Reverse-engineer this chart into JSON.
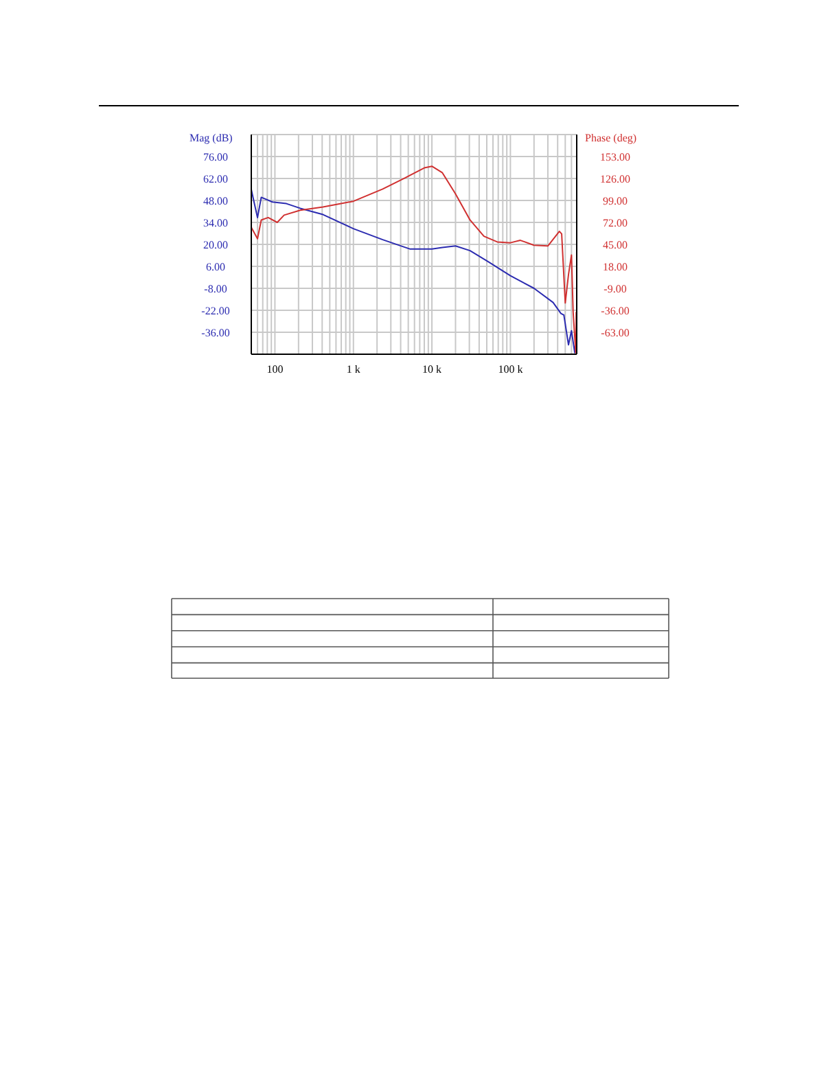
{
  "chart_data": {
    "type": "line",
    "ylabel": "Mag (dB)",
    "y2label": "Phase (deg)",
    "series": [
      {
        "color": "#2b2bb0",
        "x": [
          50,
          60,
          67,
          93,
          140,
          210,
          410,
          1000,
          2360,
          5300,
          10000,
          13600,
          20000,
          30600,
          52000,
          100000,
          200000,
          350000,
          440000,
          480000,
          550000,
          600000,
          660000,
          680000
        ],
        "values": [
          55,
          37,
          50,
          47,
          46,
          43,
          39,
          30,
          23,
          17,
          17,
          18,
          19,
          16,
          9,
          0,
          -8,
          -17,
          -24,
          -25,
          -44,
          -35,
          -49,
          -41
        ]
      },
      {
        "color": "#d03030",
        "axis": "y2",
        "x": [
          50,
          60,
          67,
          82,
          107,
          131,
          210,
          410,
          1000,
          2360,
          4600,
          8000,
          10000,
          13600,
          20000,
          30600,
          46000,
          68000,
          100000,
          134000,
          200000,
          300000,
          420000,
          450000,
          500000,
          550000,
          600000,
          630000,
          680000,
          690000
        ],
        "values": [
          66,
          52,
          75,
          78,
          72,
          81,
          87,
          91,
          98,
          113,
          127,
          139,
          141,
          133,
          107,
          75,
          55,
          48,
          47,
          50,
          44,
          43,
          61,
          58,
          -27,
          8,
          32,
          -38,
          -88,
          -38
        ]
      }
    ],
    "log": "x",
    "grid": true,
    "line_style": "solid",
    "marker": "none",
    "xlim": [
      50,
      700000
    ],
    "xticks": [
      {
        "value": 50,
        "label": null
      },
      {
        "value": 60,
        "label": null
      },
      {
        "value": 70,
        "label": null
      },
      {
        "value": 80,
        "label": null
      },
      {
        "value": 90,
        "label": null
      },
      {
        "value": 100,
        "label": "100"
      },
      {
        "value": 200,
        "label": null
      },
      {
        "value": 300,
        "label": null
      },
      {
        "value": 400,
        "label": null
      },
      {
        "value": 500,
        "label": null
      },
      {
        "value": 600,
        "label": null
      },
      {
        "value": 700,
        "label": null
      },
      {
        "value": 800,
        "label": null
      },
      {
        "value": 900,
        "label": null
      },
      {
        "value": 1000,
        "label": "1 k"
      },
      {
        "value": 2000,
        "label": null
      },
      {
        "value": 3000,
        "label": null
      },
      {
        "value": 4000,
        "label": null
      },
      {
        "value": 5000,
        "label": null
      },
      {
        "value": 6000,
        "label": null
      },
      {
        "value": 7000,
        "label": null
      },
      {
        "value": 8000,
        "label": null
      },
      {
        "value": 9000,
        "label": null
      },
      {
        "value": 10000,
        "label": "10 k"
      },
      {
        "value": 20000,
        "label": null
      },
      {
        "value": 30000,
        "label": null
      },
      {
        "value": 40000,
        "label": null
      },
      {
        "value": 50000,
        "label": null
      },
      {
        "value": 60000,
        "label": null
      },
      {
        "value": 70000,
        "label": null
      },
      {
        "value": 80000,
        "label": null
      },
      {
        "value": 90000,
        "label": null
      },
      {
        "value": 100000,
        "label": "100 k"
      },
      {
        "value": 200000,
        "label": null
      },
      {
        "value": 300000,
        "label": null
      },
      {
        "value": 400000,
        "label": null
      },
      {
        "value": 500000,
        "label": null
      },
      {
        "value": 600000,
        "label": null
      },
      {
        "value": 700000,
        "label": null
      }
    ],
    "ylim": [
      -50,
      90
    ],
    "yticks": [
      {
        "value": -36,
        "label": "-36.00"
      },
      {
        "value": -22,
        "label": "-22.00"
      },
      {
        "value": -8,
        "label": "-8.00"
      },
      {
        "value": 6,
        "label": "6.00"
      },
      {
        "value": 20,
        "label": "20.00"
      },
      {
        "value": 34,
        "label": "34.00"
      },
      {
        "value": 48,
        "label": "48.00"
      },
      {
        "value": 62,
        "label": "62.00"
      },
      {
        "value": 76,
        "label": "76.00"
      }
    ],
    "y2lim": [
      -90,
      180
    ],
    "y2ticks": [
      {
        "value": -63,
        "label": "-63.00"
      },
      {
        "value": -36,
        "label": "-36.00"
      },
      {
        "value": -9,
        "label": "-9.00"
      },
      {
        "value": 18,
        "label": "18.00"
      },
      {
        "value": 45,
        "label": "45.00"
      },
      {
        "value": 72,
        "label": "72.00"
      },
      {
        "value": 99,
        "label": "99.00"
      },
      {
        "value": 126,
        "label": "126.00"
      },
      {
        "value": 153,
        "label": "153.00"
      }
    ]
  }
}
